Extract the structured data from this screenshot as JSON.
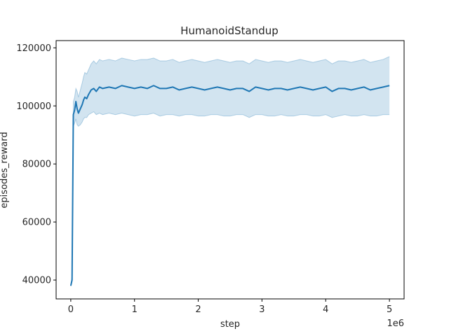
{
  "chart_data": {
    "type": "line",
    "title": "HumanoidStandup",
    "xlabel": "step",
    "ylabel": "episodes_reward",
    "x_offset_label": "1e6",
    "xlim": [
      -0.23,
      5.23
    ],
    "ylim": [
      33500,
      122500
    ],
    "x_ticks": [
      0,
      1,
      2,
      3,
      4,
      5
    ],
    "y_ticks": [
      40000,
      60000,
      80000,
      100000,
      120000
    ],
    "x_tick_labels": [
      "0",
      "1",
      "2",
      "3",
      "4",
      "5"
    ],
    "y_tick_labels": [
      "40000",
      "60000",
      "80000",
      "100000",
      "120000"
    ],
    "grid": false,
    "legend": "none",
    "colors": {
      "line": "#1f77b4",
      "band": "#1f77b4"
    },
    "series": [
      {
        "x": [
          0.0,
          0.02,
          0.04,
          0.06,
          0.08,
          0.1,
          0.12,
          0.15,
          0.18,
          0.2,
          0.22,
          0.25,
          0.28,
          0.32,
          0.36,
          0.4,
          0.45,
          0.5,
          0.6,
          0.7,
          0.8,
          0.9,
          1.0,
          1.1,
          1.2,
          1.3,
          1.4,
          1.5,
          1.6,
          1.7,
          1.8,
          1.9,
          2.0,
          2.1,
          2.2,
          2.3,
          2.4,
          2.5,
          2.6,
          2.7,
          2.8,
          2.9,
          3.0,
          3.1,
          3.2,
          3.3,
          3.4,
          3.5,
          3.6,
          3.7,
          3.8,
          3.9,
          4.0,
          4.1,
          4.2,
          4.3,
          4.4,
          4.5,
          4.6,
          4.7,
          4.8,
          4.9,
          5.0
        ],
        "y": [
          38000,
          40000,
          97000,
          98500,
          101500,
          99000,
          97500,
          99000,
          100500,
          102000,
          103000,
          102500,
          104000,
          105500,
          106000,
          105000,
          106500,
          106000,
          106500,
          106000,
          107000,
          106500,
          106000,
          106500,
          106000,
          107000,
          106000,
          106000,
          106500,
          105500,
          106000,
          106500,
          106000,
          105500,
          106000,
          106500,
          106000,
          105500,
          106000,
          106000,
          105000,
          106500,
          106000,
          105500,
          106000,
          106000,
          105500,
          106000,
          106500,
          106000,
          105500,
          106000,
          106500,
          105000,
          106000,
          106000,
          105500,
          106000,
          106500,
          105500,
          106000,
          106500,
          107000
        ],
        "lower": [
          38000,
          39500,
          93000,
          94000,
          95500,
          93500,
          93000,
          93500,
          94500,
          95500,
          96000,
          96000,
          97000,
          97500,
          98000,
          97000,
          97500,
          97000,
          97500,
          97000,
          97500,
          97000,
          96500,
          97000,
          97000,
          97500,
          96500,
          97000,
          97000,
          96500,
          97000,
          97000,
          96500,
          96500,
          97000,
          97000,
          96500,
          96500,
          97000,
          97000,
          96000,
          97000,
          97000,
          96500,
          96500,
          97000,
          96500,
          96500,
          97000,
          97000,
          96500,
          96500,
          97000,
          96000,
          96500,
          97000,
          96500,
          96500,
          97000,
          96500,
          96500,
          97000,
          97000
        ],
        "upper": [
          38500,
          41000,
          101500,
          103000,
          106000,
          105000,
          103000,
          105500,
          108000,
          110000,
          111500,
          111000,
          112500,
          114500,
          115500,
          114500,
          116000,
          115500,
          116000,
          115500,
          116500,
          116000,
          115500,
          116000,
          116000,
          116500,
          115500,
          115500,
          116000,
          115000,
          115500,
          116000,
          115500,
          115000,
          115500,
          116000,
          115500,
          115000,
          115500,
          115500,
          114500,
          116000,
          115500,
          115000,
          115500,
          115500,
          115000,
          115500,
          116000,
          115500,
          115000,
          115500,
          116000,
          114500,
          115500,
          115500,
          115000,
          115500,
          116000,
          115000,
          115500,
          116000,
          117000
        ]
      }
    ]
  }
}
